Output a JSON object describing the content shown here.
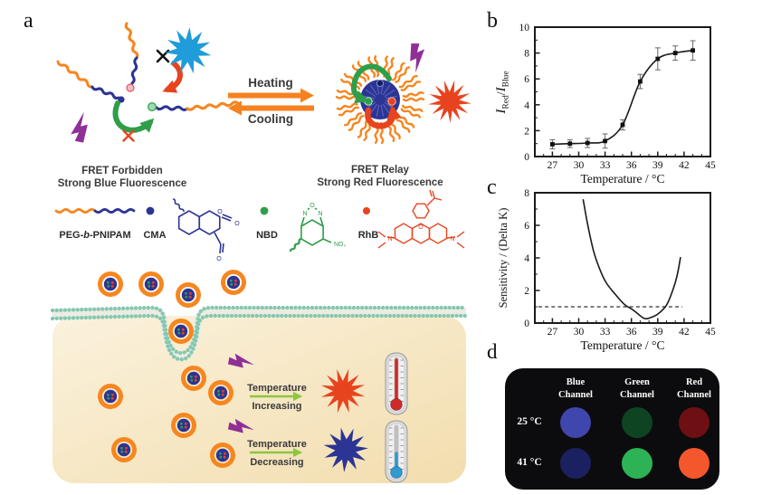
{
  "panels": {
    "a": "a",
    "b": "b",
    "c": "c",
    "d": "d"
  },
  "panel_a": {
    "fret_forbidden": [
      "FRET Forbidden",
      "Strong Blue Fluorescence"
    ],
    "fret_relay": [
      "FRET Relay",
      "Strong Red Fluorescence"
    ],
    "heating": "Heating",
    "cooling": "Cooling",
    "legend": {
      "peg_pre": "PEG-",
      "peg_b": "b",
      "peg_post": "-PNIPAM",
      "cma": "CMA",
      "nbd": "NBD",
      "rhb": "RhB"
    },
    "atoms": {
      "cma_o1": "O",
      "cma_o2": "O",
      "cma_o3": "O",
      "nbd_n1": "N",
      "nbd_o": "O",
      "nbd_n2": "N",
      "nbd_no2": "NO₂",
      "rhb_n1": "N",
      "rhb_n2": "N",
      "rhb_o": "O"
    },
    "temperature_increasing": [
      "Temperature",
      "Increasing"
    ],
    "temperature_decreasing": [
      "Temperature",
      "Decreasing"
    ],
    "colors": {
      "peg_orange": "#f6861f",
      "pnipam_blue": "#2c3494",
      "green": "#2f9e49",
      "red": "#e8431f",
      "purple": "#8e3096",
      "blue_star": "#1f9cd9",
      "membrane_teal": "#85c8b0",
      "cell_fill": "#f7e9c9"
    }
  },
  "chart_data": [
    {
      "id": "panel_b",
      "type": "scatter",
      "x": [
        27,
        29,
        31,
        33,
        35,
        37,
        39,
        41,
        43
      ],
      "y": [
        0.95,
        1.0,
        1.05,
        1.2,
        2.45,
        5.8,
        7.55,
        8.0,
        8.2
      ],
      "yerr": [
        0.35,
        0.3,
        0.35,
        0.55,
        0.4,
        0.55,
        0.85,
        0.55,
        0.75
      ],
      "fit": "sigmoid through points",
      "title": "",
      "xlabel": "Temperature / °C",
      "ylabel": "I_Red / I_Blue",
      "ylabel_parts": {
        "num": "I",
        "num_sub": "Red",
        "slash": "/",
        "den": "I",
        "den_sub": "Blue"
      },
      "xlim": [
        25,
        45
      ],
      "ylim": [
        0,
        10
      ],
      "xticks": [
        27,
        30,
        33,
        36,
        39,
        42,
        45
      ],
      "yticks": [
        0,
        2,
        4,
        6,
        8,
        10
      ],
      "marker": "square",
      "line_color": "#1a1a1a",
      "grid": false,
      "legend": "none"
    },
    {
      "id": "panel_c",
      "type": "line",
      "x": [
        30.5,
        31,
        31.7,
        32.4,
        33.1,
        34.1,
        35.2,
        36.2,
        37,
        37.5,
        38,
        39,
        40,
        40.7,
        41.2,
        41.6
      ],
      "y": [
        7.6,
        6.1,
        4.4,
        3.3,
        2.5,
        1.8,
        1.15,
        0.8,
        0.45,
        0.28,
        0.3,
        0.55,
        1.1,
        2.0,
        2.9,
        4.05
      ],
      "reference_line_y": 1,
      "reference_line_style": "dashed",
      "title": "",
      "xlabel": "Temperature / °C",
      "ylabel": "Sensitivity / (Delta K)",
      "xlim": [
        25,
        45
      ],
      "ylim": [
        0,
        8
      ],
      "xticks": [
        27,
        30,
        33,
        36,
        39,
        42,
        45
      ],
      "yticks": [
        0,
        2,
        4,
        6,
        8
      ],
      "line_color": "#1a1a1a",
      "grid": false,
      "legend": "none"
    }
  ],
  "panel_d": {
    "background": "#0c0c0e",
    "columns": [
      "Blue Channel",
      "Green Channel",
      "Red Channel"
    ],
    "rows": [
      {
        "label": "25 °C",
        "circles": [
          "#3f46ad",
          "#0f4423",
          "#6e1013"
        ]
      },
      {
        "label": "41 °C",
        "circles": [
          "#1b2060",
          "#2db355",
          "#f4572b"
        ]
      }
    ]
  }
}
